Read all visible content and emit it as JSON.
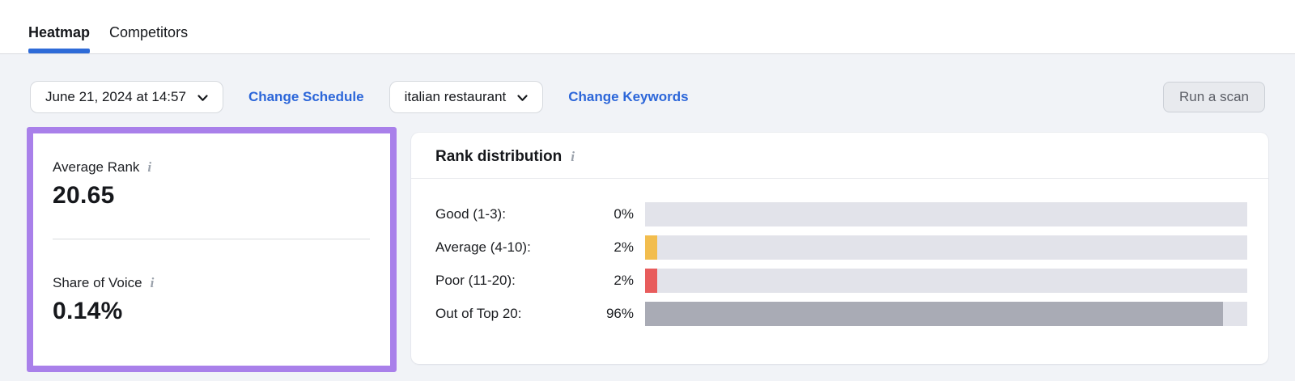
{
  "tabs": [
    {
      "label": "Heatmap",
      "active": true
    },
    {
      "label": "Competitors",
      "active": false
    }
  ],
  "toolbar": {
    "schedule_dropdown_value": "June 21, 2024 at 14:57",
    "change_schedule_label": "Change Schedule",
    "keyword_dropdown_value": "italian restaurant",
    "change_keywords_label": "Change Keywords",
    "run_scan_label": "Run a scan"
  },
  "metrics": {
    "average_rank_label": "Average Rank",
    "average_rank_value": "20.65",
    "share_of_voice_label": "Share of Voice",
    "share_of_voice_value": "0.14%",
    "info_icon_glyph": "i"
  },
  "chart_data": {
    "type": "bar",
    "orientation": "horizontal",
    "title": "Rank distribution",
    "categories": [
      "Good (1-3):",
      "Average (4-10):",
      "Poor (11-20):",
      "Out of Top 20:"
    ],
    "values": [
      0,
      2,
      2,
      96
    ],
    "value_labels": [
      "0%",
      "2%",
      "2%",
      "96%"
    ],
    "bar_colors": [
      "#e2e3ea",
      "#f2bd4e",
      "#e85c5c",
      "#a9abb5"
    ],
    "xlim": [
      0,
      100
    ],
    "track_color": "#e2e3ea",
    "legend": "none",
    "grid": false
  },
  "colors": {
    "accent_blue": "#2e6bd8",
    "link_blue": "#2c66d9",
    "highlight_purple": "#a980ea",
    "page_background": "#f1f3f7",
    "bar_good": "#e2e3ea",
    "bar_average": "#f2bd4e",
    "bar_poor": "#e85c5c",
    "bar_out_of_top": "#a9abb5"
  }
}
